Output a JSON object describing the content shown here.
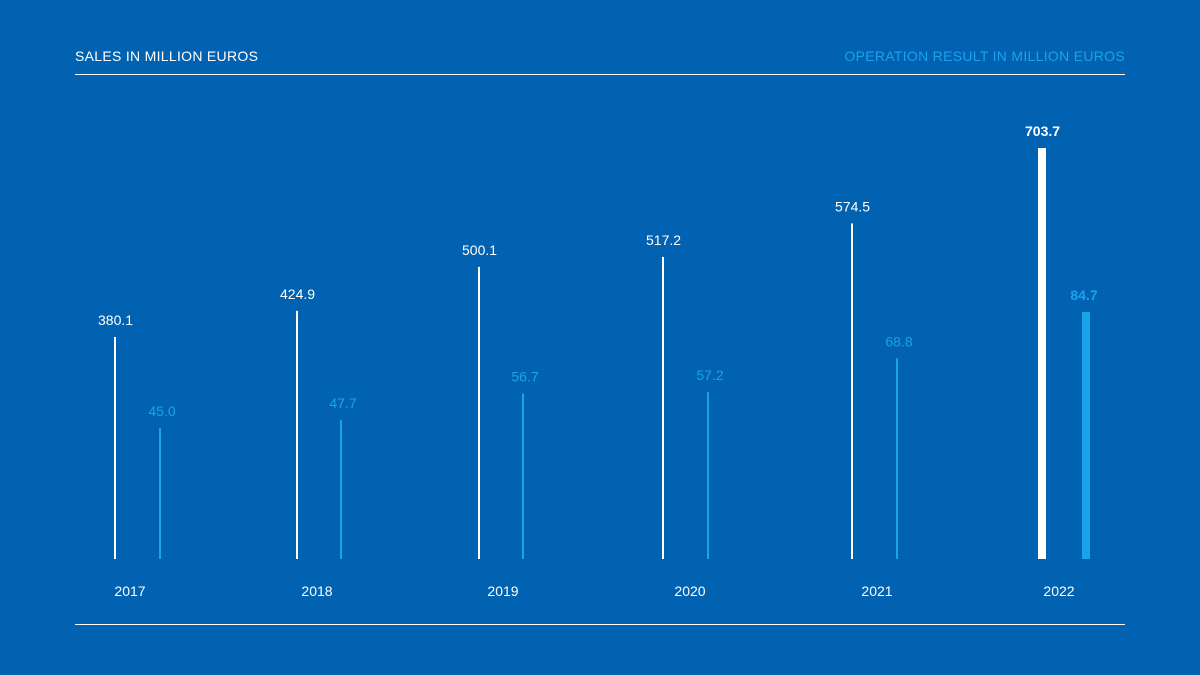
{
  "header": {
    "left_label": "SALES IN MILLION EUROS",
    "right_label": "OPERATION RESULT IN MILLION EUROS"
  },
  "colors": {
    "background": "#0062b0",
    "sales": "#ffffff",
    "operation_result": "#1aa3ec"
  },
  "chart_data": {
    "type": "bar",
    "categories": [
      "2017",
      "2018",
      "2019",
      "2020",
      "2021",
      "2022"
    ],
    "series": [
      {
        "name": "SALES IN MILLION EUROS",
        "values": [
          380.1,
          424.9,
          500.1,
          517.2,
          574.5,
          703.7
        ],
        "labels": [
          "380.1",
          "424.9",
          "500.1",
          "517.2",
          "574.5",
          "703.7"
        ]
      },
      {
        "name": "OPERATION RESULT IN MILLION EUROS",
        "values": [
          45.0,
          47.7,
          56.7,
          57.2,
          68.8,
          84.7
        ],
        "labels": [
          "45.0",
          "47.7",
          "56.7",
          "57.2",
          "68.8",
          "84.7"
        ]
      }
    ],
    "highlighted_category": "2022",
    "legend": "top",
    "grid": false
  }
}
